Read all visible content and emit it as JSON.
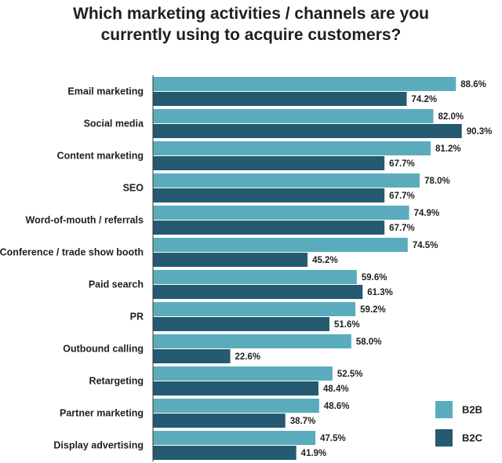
{
  "title_lines": [
    "Which marketing activities / channels are you",
    "currently using to acquire customers?"
  ],
  "colors": {
    "b2b": "#5aacbd",
    "b2c": "#255a70",
    "axis": "#333333"
  },
  "chart_data": {
    "type": "bar",
    "orientation": "horizontal",
    "title": "Which marketing activities / channels are you currently using to acquire customers?",
    "categories": [
      "Email marketing",
      "Social media",
      "Content marketing",
      "SEO",
      "Word-of-mouth / referrals",
      "Conference / trade show booth",
      "Paid search",
      "PR",
      "Outbound calling",
      "Retargeting",
      "Partner marketing",
      "Display advertising"
    ],
    "series": [
      {
        "name": "B2B",
        "values": [
          88.6,
          82.0,
          81.2,
          78.0,
          74.9,
          74.5,
          59.6,
          59.2,
          58.0,
          52.5,
          48.6,
          47.5
        ],
        "labels": [
          "88.6%",
          "82.0%",
          "81.2%",
          "78.0%",
          "74.9%",
          "74.5%",
          "59.6%",
          "59.2%",
          "58.0%",
          "52.5%",
          "48.6%",
          "47.5%"
        ]
      },
      {
        "name": "B2C",
        "values": [
          74.2,
          90.3,
          67.7,
          67.7,
          67.7,
          45.2,
          61.3,
          51.6,
          22.6,
          48.4,
          38.7,
          41.9
        ],
        "labels": [
          "74.2%",
          "90.3%",
          "67.7%",
          "67.7%",
          "67.7%",
          "45.2%",
          "61.3%",
          "51.6%",
          "22.6%",
          "48.4%",
          "38.7%",
          "41.9%"
        ]
      }
    ],
    "xlim": [
      0,
      100
    ],
    "grid": false,
    "legend_position": "bottom-right"
  }
}
